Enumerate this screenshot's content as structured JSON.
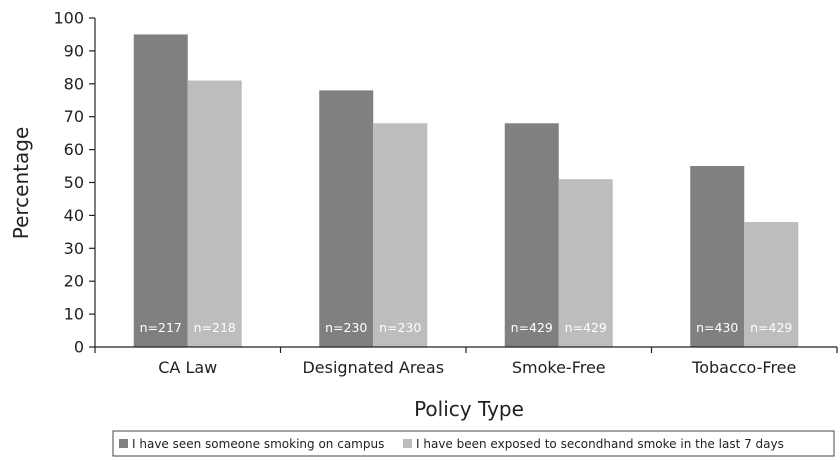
{
  "chart_data": {
    "type": "bar",
    "title": "",
    "xlabel": "Policy Type",
    "ylabel": "Percentage",
    "ylim": [
      0,
      100
    ],
    "yticks": [
      0,
      10,
      20,
      30,
      40,
      50,
      60,
      70,
      80,
      90,
      100
    ],
    "categories": [
      "CA Law",
      "Designated Areas",
      "Smoke-Free",
      "Tobacco-Free"
    ],
    "series": [
      {
        "name": "I have seen someone smoking on campus",
        "color": "#808080",
        "values": [
          95,
          78,
          68,
          55
        ],
        "n_labels": [
          "n=217",
          "n=230",
          "n=429",
          "n=430"
        ]
      },
      {
        "name": "I have been exposed to secondhand smoke in the last 7 days",
        "color": "#bdbdbd",
        "values": [
          81,
          68,
          51,
          38
        ],
        "n_labels": [
          "n=218",
          "n=230",
          "n=429",
          "n=429"
        ]
      }
    ],
    "grid": false,
    "legend_position": "bottom"
  }
}
